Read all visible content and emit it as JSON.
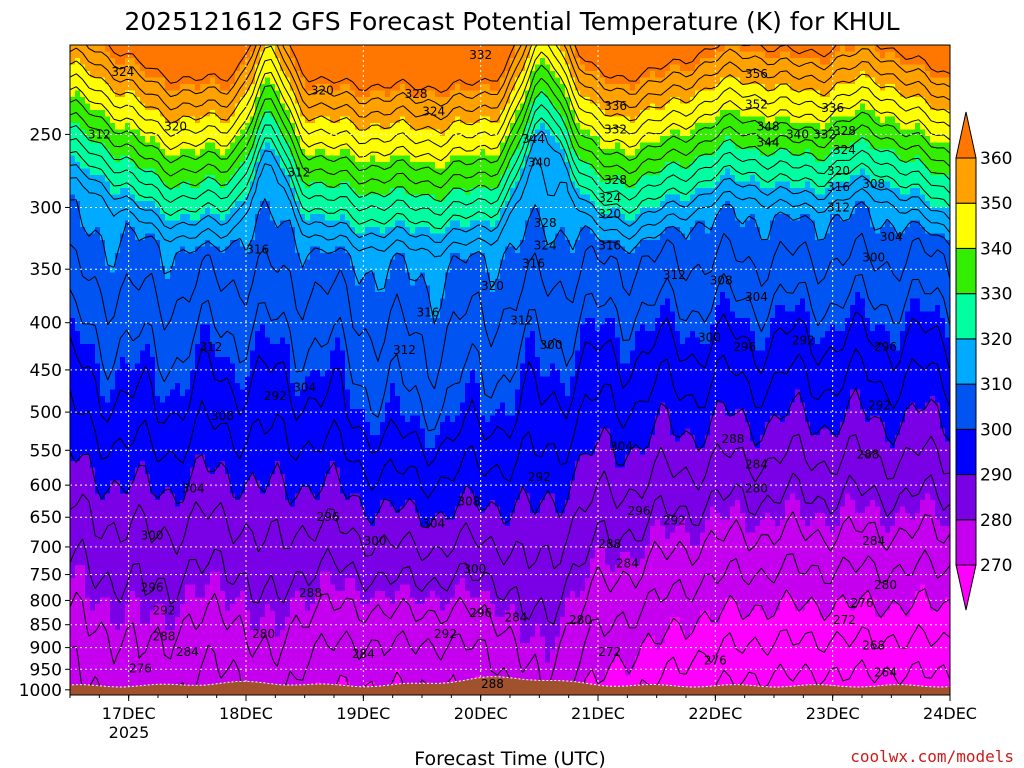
{
  "chart_data": {
    "type": "heatmap",
    "title": "2025121612 GFS Forecast Potential Temperature (K) for KHUL",
    "xlabel": "Forecast Time (UTC)",
    "ylabel": "",
    "x_ticks": [
      "17DEC",
      "18DEC",
      "19DEC",
      "20DEC",
      "21DEC",
      "22DEC",
      "23DEC",
      "24DEC"
    ],
    "x_sub_label": "2025",
    "x_range_days": [
      16.5,
      24.0
    ],
    "y_ticks": [
      "250",
      "300",
      "350",
      "400",
      "450",
      "500",
      "550",
      "600",
      "650",
      "700",
      "750",
      "800",
      "850",
      "900",
      "950",
      "1000"
    ],
    "y_range_hpa": [
      200,
      1013
    ],
    "y_scale": "log",
    "colorbar": {
      "ticks": [
        "360",
        "350",
        "340",
        "330",
        "320",
        "310",
        "300",
        "290",
        "280",
        "270"
      ],
      "levels": [
        270,
        280,
        290,
        300,
        310,
        320,
        330,
        340,
        350,
        360
      ],
      "colors": [
        "#ff00ff",
        "#c400ef",
        "#7a00e6",
        "#0000ff",
        "#0055f2",
        "#00aaff",
        "#00ffa0",
        "#33ee00",
        "#ffff00",
        "#ffa200",
        "#ff7700"
      ],
      "placement": "right"
    },
    "colors": {
      "ground": "#a0522d",
      "contour": "#000000"
    },
    "contour_labels": [
      {
        "t": 16.95,
        "p": 214,
        "v": "324"
      },
      {
        "t": 16.75,
        "p": 250,
        "v": "312"
      },
      {
        "t": 17.4,
        "p": 245,
        "v": "320"
      },
      {
        "t": 18.65,
        "p": 224,
        "v": "320"
      },
      {
        "t": 19.45,
        "p": 226,
        "v": "328"
      },
      {
        "t": 19.6,
        "p": 236,
        "v": "324"
      },
      {
        "t": 20.0,
        "p": 205,
        "v": "332"
      },
      {
        "t": 18.45,
        "p": 275,
        "v": "312"
      },
      {
        "t": 18.1,
        "p": 333,
        "v": "316"
      },
      {
        "t": 21.15,
        "p": 233,
        "v": "336"
      },
      {
        "t": 21.15,
        "p": 247,
        "v": "332"
      },
      {
        "t": 22.35,
        "p": 215,
        "v": "356"
      },
      {
        "t": 22.35,
        "p": 232,
        "v": "352"
      },
      {
        "t": 22.45,
        "p": 245,
        "v": "348"
      },
      {
        "t": 22.45,
        "p": 255,
        "v": "344"
      },
      {
        "t": 22.7,
        "p": 250,
        "v": "340"
      },
      {
        "t": 22.93,
        "p": 250,
        "v": "332"
      },
      {
        "t": 23.0,
        "p": 234,
        "v": "336"
      },
      {
        "t": 23.1,
        "p": 248,
        "v": "328"
      },
      {
        "t": 23.1,
        "p": 260,
        "v": "324"
      },
      {
        "t": 23.05,
        "p": 274,
        "v": "320"
      },
      {
        "t": 23.05,
        "p": 285,
        "v": "316"
      },
      {
        "t": 23.35,
        "p": 283,
        "v": "308"
      },
      {
        "t": 23.05,
        "p": 300,
        "v": "312"
      },
      {
        "t": 20.45,
        "p": 253,
        "v": "344"
      },
      {
        "t": 20.5,
        "p": 268,
        "v": "340"
      },
      {
        "t": 21.15,
        "p": 280,
        "v": "328"
      },
      {
        "t": 21.1,
        "p": 293,
        "v": "324"
      },
      {
        "t": 21.1,
        "p": 305,
        "v": "320"
      },
      {
        "t": 20.55,
        "p": 312,
        "v": "328"
      },
      {
        "t": 20.55,
        "p": 330,
        "v": "324"
      },
      {
        "t": 21.1,
        "p": 330,
        "v": "316"
      },
      {
        "t": 20.45,
        "p": 345,
        "v": "316"
      },
      {
        "t": 20.1,
        "p": 365,
        "v": "320"
      },
      {
        "t": 21.65,
        "p": 355,
        "v": "312"
      },
      {
        "t": 22.05,
        "p": 360,
        "v": "308"
      },
      {
        "t": 22.35,
        "p": 375,
        "v": "304"
      },
      {
        "t": 23.5,
        "p": 323,
        "v": "304"
      },
      {
        "t": 23.35,
        "p": 340,
        "v": "300"
      },
      {
        "t": 19.55,
        "p": 390,
        "v": "316"
      },
      {
        "t": 20.35,
        "p": 398,
        "v": "312"
      },
      {
        "t": 19.35,
        "p": 428,
        "v": "312"
      },
      {
        "t": 17.7,
        "p": 425,
        "v": "312"
      },
      {
        "t": 20.6,
        "p": 423,
        "v": "300"
      },
      {
        "t": 21.95,
        "p": 415,
        "v": "300"
      },
      {
        "t": 22.25,
        "p": 425,
        "v": "296"
      },
      {
        "t": 22.75,
        "p": 418,
        "v": "292"
      },
      {
        "t": 23.45,
        "p": 425,
        "v": "296"
      },
      {
        "t": 18.5,
        "p": 470,
        "v": "304"
      },
      {
        "t": 18.25,
        "p": 480,
        "v": "292"
      },
      {
        "t": 17.8,
        "p": 505,
        "v": "308"
      },
      {
        "t": 23.4,
        "p": 492,
        "v": "292"
      },
      {
        "t": 21.2,
        "p": 545,
        "v": "304"
      },
      {
        "t": 22.15,
        "p": 535,
        "v": "288"
      },
      {
        "t": 22.35,
        "p": 570,
        "v": "284"
      },
      {
        "t": 23.3,
        "p": 556,
        "v": "288"
      },
      {
        "t": 20.5,
        "p": 588,
        "v": "292"
      },
      {
        "t": 17.55,
        "p": 605,
        "v": "304"
      },
      {
        "t": 22.35,
        "p": 605,
        "v": "280"
      },
      {
        "t": 19.9,
        "p": 625,
        "v": "308"
      },
      {
        "t": 21.35,
        "p": 640,
        "v": "296"
      },
      {
        "t": 21.65,
        "p": 655,
        "v": "292"
      },
      {
        "t": 18.7,
        "p": 650,
        "v": "296"
      },
      {
        "t": 19.6,
        "p": 660,
        "v": "304"
      },
      {
        "t": 17.2,
        "p": 680,
        "v": "300"
      },
      {
        "t": 19.1,
        "p": 690,
        "v": "300"
      },
      {
        "t": 21.1,
        "p": 695,
        "v": "288"
      },
      {
        "t": 23.35,
        "p": 690,
        "v": "284"
      },
      {
        "t": 19.95,
        "p": 740,
        "v": "300"
      },
      {
        "t": 21.25,
        "p": 730,
        "v": "284"
      },
      {
        "t": 23.45,
        "p": 770,
        "v": "280"
      },
      {
        "t": 17.2,
        "p": 775,
        "v": "296"
      },
      {
        "t": 18.55,
        "p": 785,
        "v": "288"
      },
      {
        "t": 23.25,
        "p": 805,
        "v": "276"
      },
      {
        "t": 17.3,
        "p": 820,
        "v": "292"
      },
      {
        "t": 20.0,
        "p": 825,
        "v": "296"
      },
      {
        "t": 23.1,
        "p": 840,
        "v": "272"
      },
      {
        "t": 20.3,
        "p": 835,
        "v": "284"
      },
      {
        "t": 20.85,
        "p": 840,
        "v": "280"
      },
      {
        "t": 18.15,
        "p": 870,
        "v": "280"
      },
      {
        "t": 19.7,
        "p": 870,
        "v": "292"
      },
      {
        "t": 17.3,
        "p": 875,
        "v": "288"
      },
      {
        "t": 23.35,
        "p": 895,
        "v": "268"
      },
      {
        "t": 21.1,
        "p": 910,
        "v": "272"
      },
      {
        "t": 19.0,
        "p": 915,
        "v": "284"
      },
      {
        "t": 17.5,
        "p": 910,
        "v": "284"
      },
      {
        "t": 22.0,
        "p": 930,
        "v": "276"
      },
      {
        "t": 17.1,
        "p": 948,
        "v": "276"
      },
      {
        "t": 20.1,
        "p": 985,
        "v": "288"
      },
      {
        "t": 23.45,
        "p": 958,
        "v": "264"
      }
    ]
  },
  "credit": "coolwx.com/models"
}
